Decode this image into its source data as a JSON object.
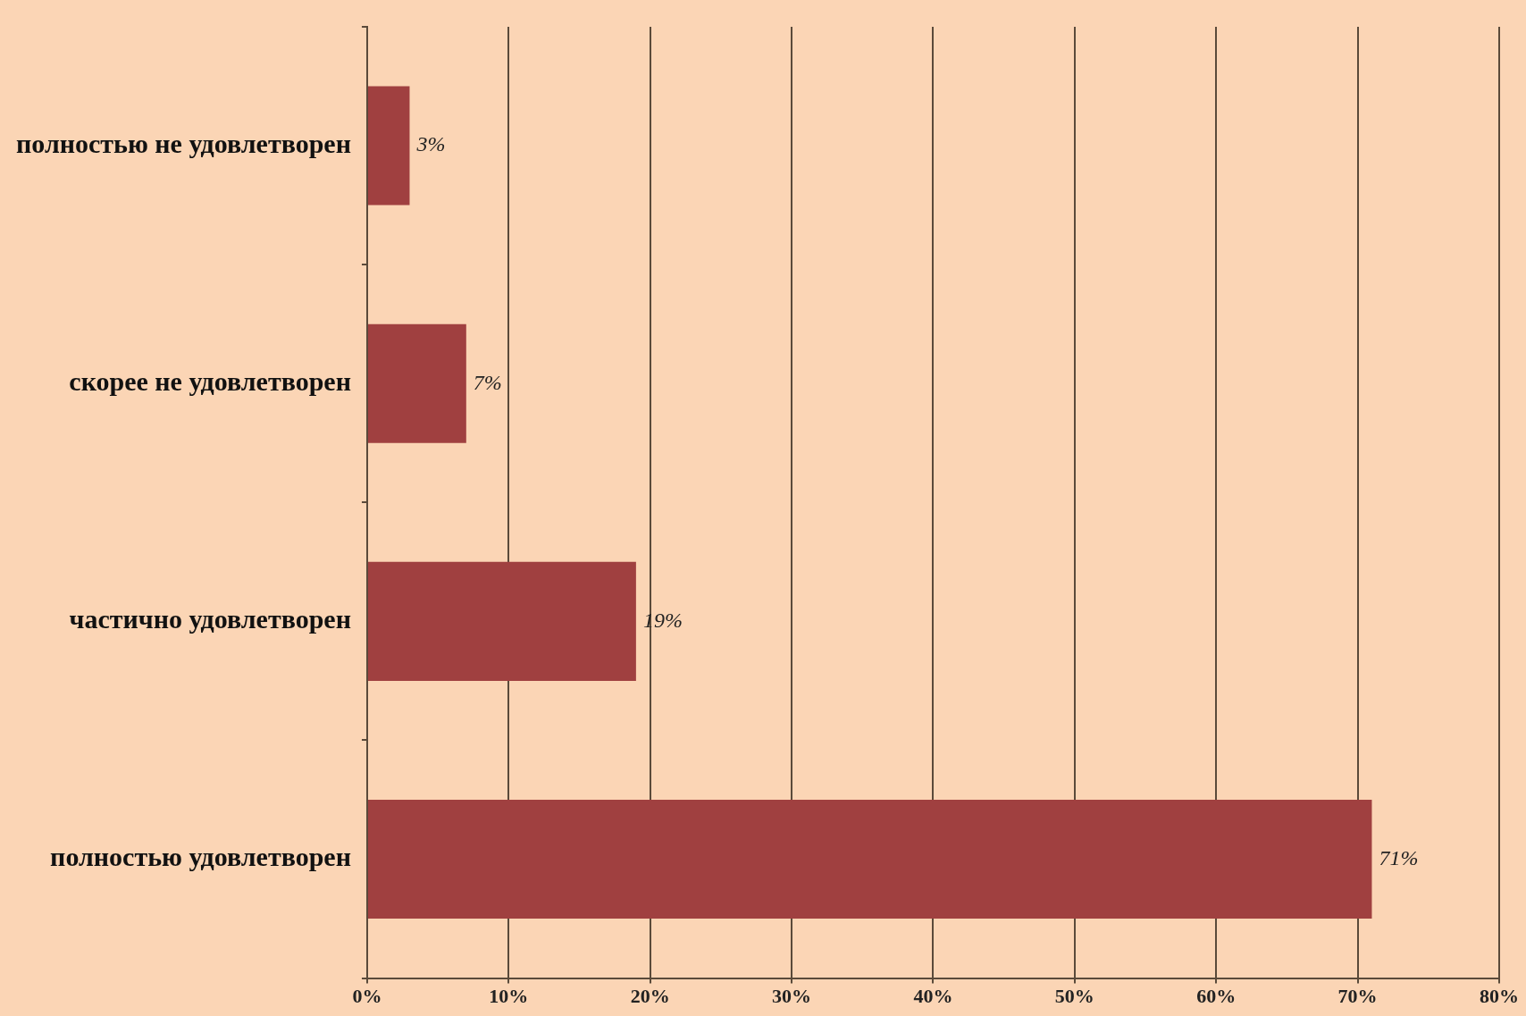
{
  "chart_data": {
    "type": "bar",
    "orientation": "horizontal",
    "categories": [
      "полностью не удовлетворен",
      "скорее не удовлетворен",
      "частично удовлетворен",
      "полностью удовлетворен"
    ],
    "values": [
      3,
      7,
      19,
      71
    ],
    "color": "#a04040",
    "value_labels": [
      "3%",
      "7%",
      "19%",
      "71%"
    ],
    "xlim": [
      0,
      80
    ],
    "xticks": [
      {
        "value": 0,
        "label": "0%"
      },
      {
        "value": 10,
        "label": "10%"
      },
      {
        "value": 20,
        "label": "20%"
      },
      {
        "value": 30,
        "label": "30%"
      },
      {
        "value": 40,
        "label": "40%"
      },
      {
        "value": 50,
        "label": "50%"
      },
      {
        "value": 60,
        "label": "60%"
      },
      {
        "value": 70,
        "label": "70%"
      },
      {
        "value": 80,
        "label": "80%"
      }
    ],
    "grid": "x",
    "legend": false
  }
}
